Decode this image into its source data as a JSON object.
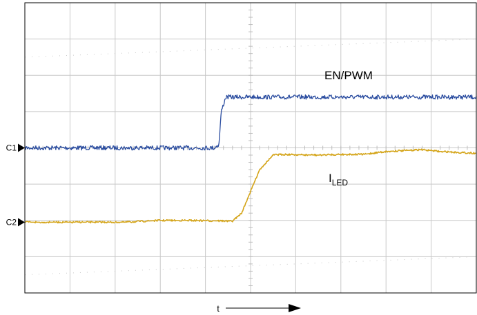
{
  "chart_data": {
    "type": "line",
    "title": "",
    "xlabel": "t",
    "ylabel": "",
    "grid": true,
    "x_divisions": 10,
    "y_divisions": 8,
    "xlim": [
      0,
      10
    ],
    "ylim": [
      0,
      8
    ],
    "channel_markers": [
      {
        "label": "C1",
        "level": 4.0
      },
      {
        "label": "C2",
        "level": 1.95
      }
    ],
    "series": [
      {
        "name": "EN/PWM",
        "color": "#2b4da0",
        "x": [
          0,
          4.2,
          4.3,
          4.35,
          4.45,
          5.0,
          10
        ],
        "y": [
          4.0,
          4.0,
          4.1,
          5.0,
          5.4,
          5.4,
          5.4
        ]
      },
      {
        "name": "I",
        "name_subscript": "LED",
        "color": "#d4a418",
        "x": [
          0,
          1.0,
          2.2,
          3.0,
          3.6,
          4.6,
          4.8,
          5.0,
          5.2,
          5.5,
          5.7,
          6.5,
          7.0,
          7.5,
          8.0,
          8.8,
          9.2,
          10
        ],
        "y": [
          1.95,
          1.95,
          1.95,
          2.0,
          2.0,
          1.98,
          2.2,
          2.8,
          3.4,
          3.8,
          3.82,
          3.8,
          3.82,
          3.82,
          3.9,
          3.95,
          3.9,
          3.85
        ]
      }
    ]
  }
}
